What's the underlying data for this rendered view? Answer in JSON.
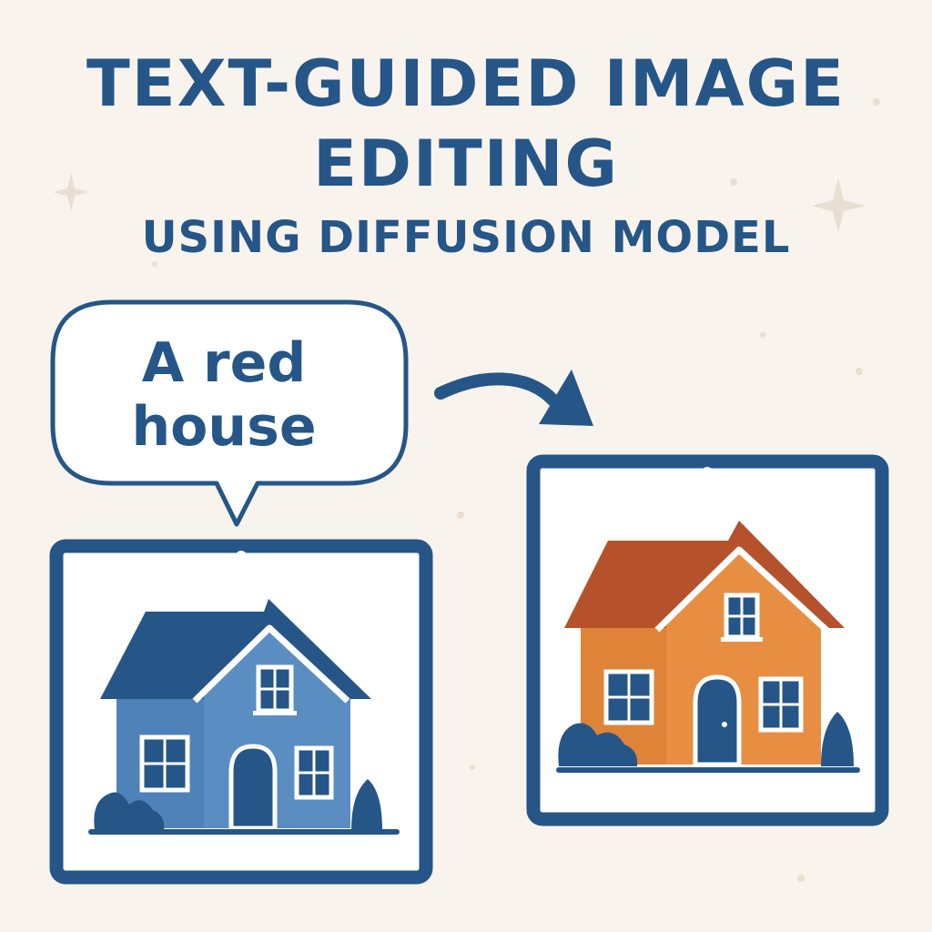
{
  "heading": {
    "line1": "TEXT-GUIDED IMAGE",
    "line2": "EDITING",
    "subtitle": "USING DIFFUSION MODEL"
  },
  "prompt_bubble": {
    "text": "A red\nhouse"
  },
  "icons": {
    "speech_bubble": "speech-bubble-icon",
    "arrow": "curved-arrow-icon",
    "source_frame": "tablet-frame-icon",
    "source_house": "blue-house-icon",
    "result_frame": "tablet-frame-icon",
    "result_house": "orange-house-icon"
  },
  "colors": {
    "background": "#f8f3ec",
    "primary_blue": "#255687",
    "house_blue": "#5588bd",
    "roof_blue": "#255687",
    "house_orange": "#e0873a",
    "roof_brown": "#b5522b",
    "window_white": "#ffffff"
  }
}
